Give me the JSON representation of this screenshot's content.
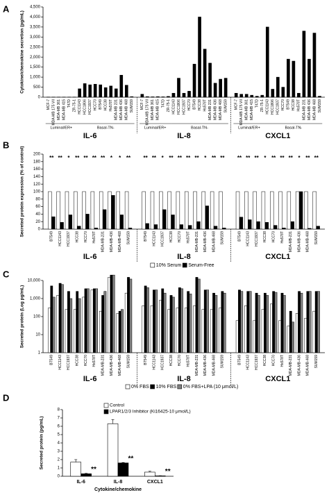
{
  "chart_data": [
    {
      "type": "grouped-bar",
      "panel": "A",
      "y_label": "Cytokine/chemokine secretion (pg/mL)",
      "groups": [
        "IL-6",
        "IL-8",
        "CXCL1"
      ],
      "subtypes": [
        {
          "label": "Luminal/ER+",
          "categories": [
            "MCF-7",
            "MDA-MB 175 VII",
            "MDA-MB 361",
            "MDA-MB 415",
            "T47D",
            "ZR-75-1"
          ]
        },
        {
          "label": "Basal-TN-",
          "categories": [
            "HCC1143",
            "HCC1806",
            "HCC1937",
            "HCC70",
            "BT549",
            "HCC38",
            "Hs578T",
            "MDA-MB 231",
            "MDA-MB 436",
            "MDA-MB 468",
            "SUM159"
          ]
        }
      ],
      "color": "#000000",
      "values": [
        [
          10,
          10,
          10,
          10,
          10,
          10,
          420,
          680,
          620,
          650,
          620,
          480,
          560,
          420,
          1100,
          600,
          30
        ],
        [
          150,
          30,
          20,
          30,
          20,
          40,
          200,
          950,
          200,
          300,
          1650,
          4000,
          2400,
          1700,
          700,
          900,
          950
        ],
        [
          200,
          150,
          150,
          100,
          50,
          100,
          3500,
          400,
          1000,
          500,
          1900,
          1800,
          200,
          3300,
          1900,
          3200,
          50
        ]
      ],
      "ylim": [
        0,
        4500
      ],
      "yticks": [
        0,
        500,
        {
          "value": 1000,
          "label": "1,000"
        },
        {
          "value": 1500,
          "label": "1,500"
        },
        {
          "value": 2000,
          "label": "2,000"
        },
        {
          "value": 2500,
          "label": "2,500"
        },
        {
          "value": 3000,
          "label": "3,000"
        },
        {
          "value": 3500,
          "label": "3,500"
        },
        {
          "value": 4000,
          "label": "4,000"
        },
        {
          "value": 4500,
          "label": "4,500"
        }
      ]
    },
    {
      "type": "grouped-bar",
      "panel": "B",
      "y_label": "Secreted protein expression (% of control)",
      "groups": [
        "IL-6",
        "IL-8",
        "CXCL1"
      ],
      "categories": [
        "BT549",
        "HCC1143",
        "HCC1937",
        "HCC38",
        "HCC70",
        "Hs578T",
        "MDA-MB-231",
        "MDA-MB-436",
        "MDA-MB-468",
        "SUM159"
      ],
      "series": [
        {
          "name": "10% Serum",
          "color": "#ffffff",
          "values": [
            [
              100,
              100,
              100,
              100,
              100,
              100,
              100,
              100,
              100,
              100
            ],
            [
              100,
              100,
              100,
              100,
              100,
              100,
              100,
              100,
              100,
              100
            ],
            [
              100,
              100,
              100,
              100,
              100,
              100,
              100,
              100,
              100,
              100
            ]
          ]
        },
        {
          "name": "Serum-Free",
          "color": "#000000",
          "values": [
            [
              33,
              18,
              38,
              8,
              40,
              3,
              52,
              90,
              38,
              3
            ],
            [
              15,
              12,
              52,
              38,
              12,
              10,
              20,
              62,
              8,
              3
            ],
            [
              32,
              25,
              20,
              18,
              10,
              3,
              20,
              100,
              2,
              8
            ]
          ]
        }
      ],
      "annotations": [
        [
          "**",
          "**",
          "*",
          "**",
          "**",
          "**",
          "**",
          "*",
          "*",
          "**"
        ],
        [
          "**",
          "**",
          "*",
          "**",
          "**",
          "**",
          "**",
          "*",
          "**",
          "**"
        ],
        [
          "**",
          "**",
          "**",
          "*",
          "**",
          "**",
          "**",
          "*",
          "**",
          "**"
        ]
      ],
      "ylim": [
        0,
        200
      ],
      "yticks": [
        0,
        20,
        40,
        60,
        80,
        100,
        120,
        140,
        160,
        180,
        200
      ]
    },
    {
      "type": "grouped-bar",
      "panel": "C",
      "y_label": "Secreted protein (Log pg/mL)",
      "log": true,
      "groups": [
        "IL-6",
        "IL-8",
        "CXCL1"
      ],
      "categories": [
        "BT549",
        "HCC1143",
        "HCC1937",
        "HCC38",
        "HCC70",
        "Hs578T",
        "MDA-MB-231",
        "MDA-MB-436",
        "MDA-MB-468",
        "SUM159"
      ],
      "series": [
        {
          "name": "0% FBS",
          "color": "#ffffff",
          "values": [
            [
              300,
              1500,
              250,
              250,
              1200,
              3000,
              200,
              15000,
              150,
              2000
            ],
            [
              400,
              400,
              800,
              250,
              300,
              300,
              400,
              250,
              250,
              300
            ],
            [
              60,
              400,
              60,
              250,
              500,
              60,
              30,
              150,
              80,
              200
            ]
          ]
        },
        {
          "name": "10% FBS",
          "color": "#000000",
          "values": [
            [
              5000,
              7000,
              2500,
              2500,
              3500,
              3500,
              1500,
              20000,
              200,
              15000
            ],
            [
              5000,
              3000,
              3500,
              1500,
              4000,
              2500,
              15000,
              3000,
              2000,
              2500
            ],
            [
              3000,
              2500,
              2000,
              2000,
              2500,
              2000,
              200,
              2500,
              2500,
              2500
            ]
          ]
        },
        {
          "name": "0% FBS+LPA (10 μmol/L)",
          "color": "#808080",
          "values": [
            [
              1200,
              6000,
              1000,
              1000,
              3500,
              3500,
              2500,
              20000,
              250,
              12000
            ],
            [
              4000,
              3000,
              2000,
              1200,
              3500,
              1800,
              12000,
              3000,
              1500,
              2000
            ],
            [
              2500,
              2500,
              1500,
              1500,
              2200,
              1500,
              50,
              2000,
              2500,
              2500
            ]
          ]
        }
      ],
      "ylim": [
        1,
        10000
      ],
      "yticks": [
        1,
        10,
        100,
        {
          "value": 1000,
          "label": "1,000"
        },
        {
          "value": 10000,
          "label": "10,000"
        }
      ]
    },
    {
      "type": "bar",
      "panel": "D",
      "y_label": "Secreted protein (pg/mL)",
      "x_label": "Cytokine/chemokine",
      "categories": [
        "IL-6",
        "IL-8",
        "CXCL1"
      ],
      "series": [
        {
          "name": "Control",
          "color": "#ffffff",
          "values": [
            1.7,
            6.3,
            0.5
          ],
          "errors": [
            0.3,
            0.5,
            0.1
          ]
        },
        {
          "name": "LPAR1/2/3 Inhibitor (Ki16425-10 μmol/L)",
          "color": "#000000",
          "values": [
            0.3,
            1.6,
            0.05
          ],
          "errors": [
            0.05,
            0.05,
            0.02
          ]
        }
      ],
      "annotations": [
        "**",
        "**",
        "**"
      ],
      "ylim": [
        0,
        8
      ],
      "yticks": [
        0,
        1,
        2,
        3,
        4,
        5,
        6,
        7,
        8
      ]
    }
  ]
}
